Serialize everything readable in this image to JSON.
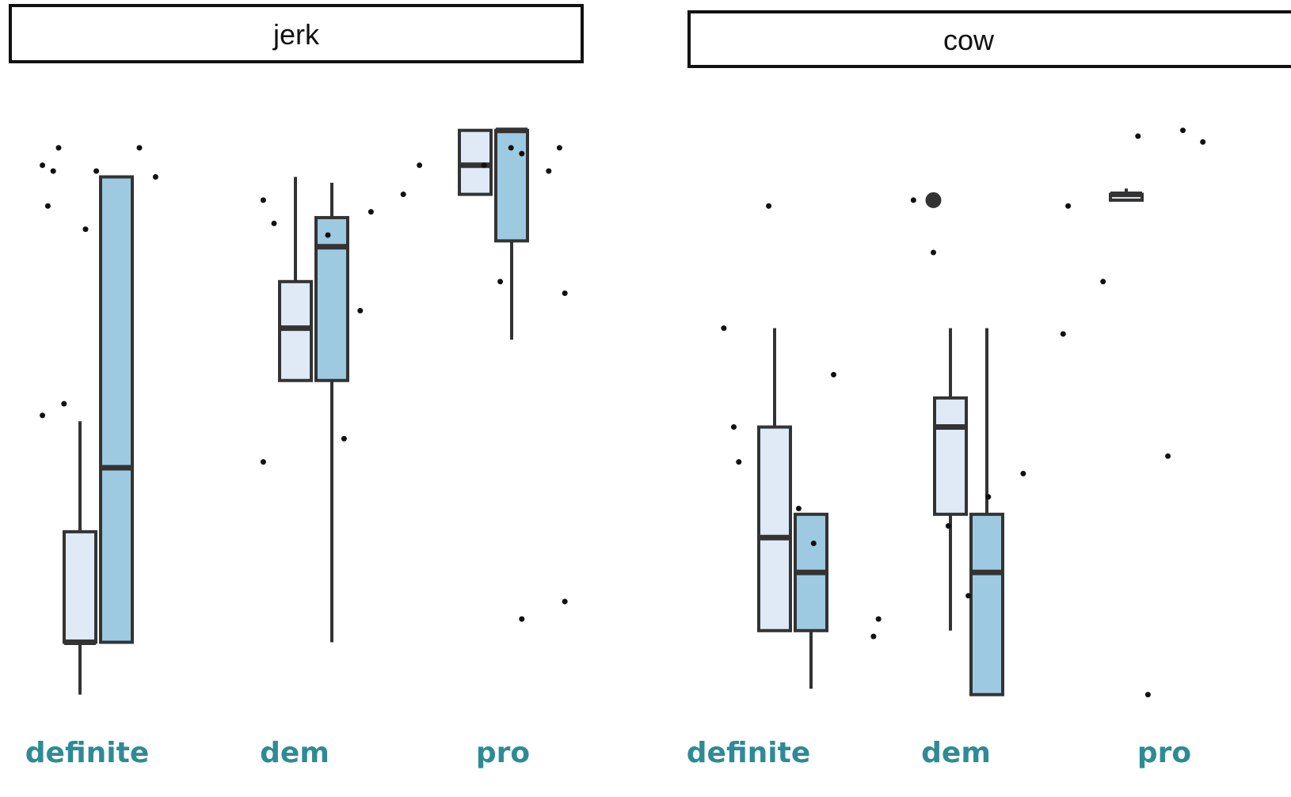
{
  "chart_data": [
    {
      "type": "boxplot",
      "title": "jerk",
      "categories": [
        "definite",
        "dem",
        "pro"
      ],
      "ylim": [
        0,
        1
      ],
      "colors": {
        "light": "#dfeaf6",
        "dark": "#9ecae1",
        "outline": "#333333",
        "label": "#2e8b96"
      },
      "series": [
        {
          "boxes": [
            {
              "min": 0.01,
              "q1": 0.1,
              "median": 0.1,
              "q3": 0.29,
              "max": 0.48
            },
            {
              "min": 0.55,
              "q1": 0.55,
              "median": 0.64,
              "q3": 0.72,
              "max": 0.9
            },
            {
              "min": 0.87,
              "q1": 0.87,
              "median": 0.92,
              "q3": 0.98,
              "max": 0.98
            }
          ]
        },
        {
          "boxes": [
            {
              "min": 0.1,
              "q1": 0.1,
              "median": 0.4,
              "q3": 0.9,
              "max": 0.9
            },
            {
              "min": 0.1,
              "q1": 0.55,
              "median": 0.78,
              "q3": 0.83,
              "max": 0.89
            },
            {
              "min": 0.62,
              "q1": 0.79,
              "median": 0.98,
              "q3": 0.98,
              "max": 0.98
            }
          ]
        }
      ],
      "points": [
        [
          0.02,
          0.92
        ],
        [
          0.1,
          0.81
        ],
        [
          0.23,
          0.9
        ],
        [
          0.45,
          0.82
        ],
        [
          0.55,
          0.8
        ],
        [
          0.63,
          0.84
        ],
        [
          0.84,
          0.92
        ],
        [
          0.89,
          0.95
        ],
        [
          0.91,
          0.94
        ],
        [
          0.96,
          0.91
        ],
        [
          0.98,
          0.95
        ],
        [
          0.99,
          0.7
        ],
        [
          0.02,
          0.49
        ],
        [
          0.03,
          0.85
        ],
        [
          0.04,
          0.91
        ],
        [
          0.05,
          0.95
        ],
        [
          0.06,
          0.51
        ],
        [
          0.12,
          0.91
        ],
        [
          0.2,
          0.95
        ],
        [
          0.43,
          0.41
        ],
        [
          0.43,
          0.86
        ],
        [
          0.58,
          0.45
        ],
        [
          0.61,
          0.67
        ],
        [
          0.69,
          0.87
        ],
        [
          0.72,
          0.92
        ],
        [
          0.87,
          0.72
        ],
        [
          0.91,
          0.14
        ],
        [
          0.99,
          0.17
        ]
      ]
    },
    {
      "type": "boxplot",
      "title": "cow",
      "categories": [
        "definite",
        "dem",
        "pro"
      ],
      "ylim": [
        0,
        1
      ],
      "colors": {
        "light": "#dfeaf6",
        "dark": "#9ecae1",
        "outline": "#333333",
        "label": "#2e8b96"
      },
      "series": [
        {
          "boxes": [
            {
              "min": 0.12,
              "q1": 0.12,
              "median": 0.28,
              "q3": 0.47,
              "max": 0.64
            },
            {
              "min": 0.12,
              "q1": 0.32,
              "median": 0.47,
              "q3": 0.52,
              "max": 0.64
            },
            {
              "min": 0.86,
              "q1": 0.86,
              "median": 0.87,
              "q3": 0.87,
              "max": 0.88
            }
          ]
        },
        {
          "boxes": [
            {
              "min": 0.02,
              "q1": 0.12,
              "median": 0.22,
              "q3": 0.32,
              "max": 0.32
            },
            {
              "min": 0.01,
              "q1": 0.01,
              "median": 0.22,
              "q3": 0.32,
              "max": 0.64
            },
            null
          ]
        }
      ],
      "points": [
        [
          0.03,
          0.64
        ],
        [
          0.05,
          0.47
        ],
        [
          0.06,
          0.41
        ],
        [
          0.12,
          0.85
        ],
        [
          0.18,
          0.33
        ],
        [
          0.21,
          0.27
        ],
        [
          0.25,
          0.56
        ],
        [
          0.33,
          0.11
        ],
        [
          0.34,
          0.14
        ],
        [
          0.41,
          0.86
        ],
        [
          0.45,
          0.77
        ],
        [
          0.48,
          0.3
        ],
        [
          0.52,
          0.18
        ],
        [
          0.56,
          0.35
        ],
        [
          0.63,
          0.39
        ],
        [
          0.71,
          0.63
        ],
        [
          0.72,
          0.85
        ],
        [
          0.79,
          0.72
        ],
        [
          0.86,
          0.97
        ],
        [
          0.88,
          0.01
        ],
        [
          0.92,
          0.42
        ],
        [
          0.95,
          0.98
        ],
        [
          0.99,
          0.96
        ]
      ],
      "highlight_point": [
        0.45,
        0.86
      ]
    }
  ]
}
